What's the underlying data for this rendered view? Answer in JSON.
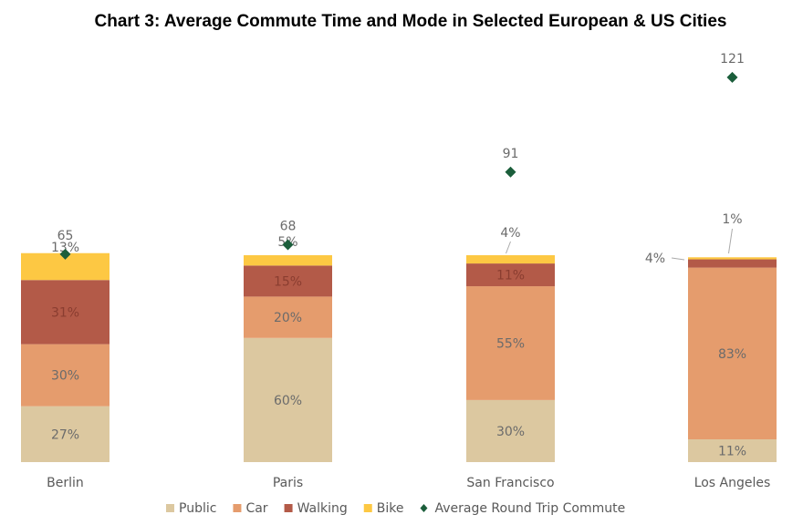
{
  "chart_data": {
    "type": "bar",
    "stacked": true,
    "title": "Chart 3: Average Commute Time and Mode in Selected European & US Cities",
    "categories": [
      "Berlin",
      "Paris",
      "San Francisco",
      "Los Angeles"
    ],
    "series": [
      {
        "name": "Public",
        "values": [
          27,
          60,
          30,
          11
        ],
        "color": "#dcc8a0"
      },
      {
        "name": "Car",
        "values": [
          30,
          20,
          55,
          83
        ],
        "color": "#e59c6d"
      },
      {
        "name": "Walking",
        "values": [
          31,
          15,
          11,
          4
        ],
        "color": "#b35a48"
      },
      {
        "name": "Bike",
        "values": [
          13,
          5,
          4,
          1
        ],
        "color": "#fdc843"
      }
    ],
    "overlay": {
      "name": "Average Round Trip Commute",
      "type": "scatter",
      "marker": "diamond",
      "values": [
        65,
        68,
        91,
        121
      ],
      "color": "#1b5e3b"
    },
    "value_suffix": "%",
    "grid": false,
    "axes_visible": false,
    "legend": "bottom"
  }
}
